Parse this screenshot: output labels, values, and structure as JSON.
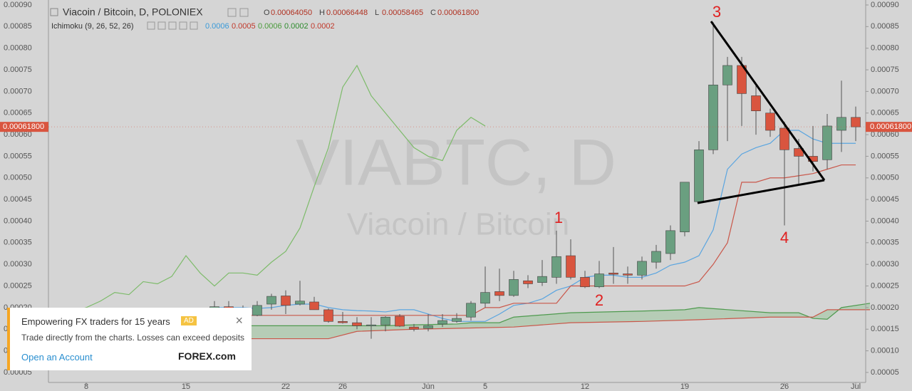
{
  "chart_data": {
    "type": "candlestick",
    "title": "Viacoin / Bitcoin, D, POLONIEX",
    "ohlc_legend": [
      "O",
      "0.00064050",
      "H",
      "0.00066448",
      "L",
      "0.00058465",
      "C",
      "0.00061800"
    ],
    "indicator": "Ichimoku (9, 26, 52, 26)",
    "indicator_values": [
      0.0006,
      0.0005,
      0.0006,
      0.0002,
      0.0002
    ],
    "indicator_colors": [
      "#3a9ad9",
      "#c0392b",
      "#4a9a3a",
      "#2e8b2e",
      "#c0392b"
    ],
    "watermark": "VIABTC, D",
    "watermark_subtitle": "Viacoin / Bitcoin",
    "last_price": {
      "value": 0.000618,
      "label": "0.00061800"
    },
    "up_color": "#6a9f80",
    "down_color": "#d9553f",
    "x": [
      16,
      17,
      18,
      19,
      20,
      21,
      22,
      23,
      24,
      25,
      26,
      27,
      28,
      29,
      30,
      31,
      32,
      33,
      34,
      35,
      36,
      37,
      38,
      39,
      40,
      41,
      42,
      43,
      44,
      45,
      46,
      47,
      48,
      49,
      50,
      51,
      52,
      53,
      54,
      55,
      56,
      57,
      58,
      59,
      60,
      61
    ],
    "open": [
      0.000195,
      0.000202,
      0.000199,
      0.000182,
      0.000208,
      0.000227,
      0.000208,
      0.000213,
      0.000195,
      0.000168,
      0.000165,
      0.000158,
      0.00016,
      0.00018,
      0.000155,
      0.000152,
      0.000162,
      0.000168,
      0.000178,
      0.00021,
      0.000237,
      0.000228,
      0.000262,
      0.000258,
      0.00027,
      0.00032,
      0.00027,
      0.000248,
      0.00028,
      0.000278,
      0.000275,
      0.000305,
      0.000325,
      0.000375,
      0.000445,
      0.000565,
      0.000715,
      0.00076,
      0.00069,
      0.00065,
      0.000615,
      0.000568,
      0.00055,
      0.000542,
      0.00061,
      0.00064
    ],
    "high": [
      0.000215,
      0.000215,
      0.000205,
      0.000215,
      0.000232,
      0.00024,
      0.000262,
      0.000225,
      0.000198,
      0.00019,
      0.000178,
      0.000178,
      0.00018,
      0.000185,
      0.000162,
      0.000185,
      0.000185,
      0.000187,
      0.000215,
      0.000295,
      0.00029,
      0.000285,
      0.000275,
      0.00031,
      0.000378,
      0.000358,
      0.000285,
      0.000308,
      0.00034,
      0.000295,
      0.000318,
      0.000345,
      0.00039,
      0.00049,
      0.000585,
      0.00086,
      0.00078,
      0.00078,
      0.000715,
      0.00066,
      0.00063,
      0.00059,
      0.00062,
      0.000648,
      0.000725,
      0.000665
    ],
    "low": [
      0.000185,
      0.00019,
      0.00019,
      0.00018,
      0.000195,
      0.000185,
      0.000205,
      0.000195,
      0.000165,
      0.000163,
      0.00015,
      0.000128,
      0.000145,
      0.000155,
      0.000145,
      0.000145,
      0.000155,
      0.000165,
      0.00017,
      0.0002,
      0.000215,
      0.000225,
      0.000245,
      0.00025,
      0.000255,
      0.000265,
      0.000245,
      0.000245,
      0.000255,
      0.000255,
      0.000265,
      0.00029,
      0.00031,
      0.000365,
      0.00044,
      0.000555,
      0.000585,
      0.00062,
      0.0006,
      0.000595,
      0.00039,
      0.000485,
      0.000515,
      0.00052,
      0.00056,
      0.000585
    ],
    "close": [
      0.000202,
      0.000199,
      0.000198,
      0.000205,
      0.000226,
      0.000205,
      0.000215,
      0.000195,
      0.000168,
      0.000165,
      0.000158,
      0.00016,
      0.000178,
      0.000157,
      0.00015,
      0.000158,
      0.00017,
      0.000175,
      0.00021,
      0.000235,
      0.000228,
      0.000265,
      0.000255,
      0.000272,
      0.000318,
      0.00027,
      0.000248,
      0.000278,
      0.000277,
      0.000275,
      0.000307,
      0.00033,
      0.000378,
      0.00049,
      0.000565,
      0.000715,
      0.00076,
      0.000695,
      0.000655,
      0.00061,
      0.000565,
      0.00055,
      0.000538,
      0.00062,
      0.00064,
      0.000618
    ],
    "series": [
      {
        "name": "Tenkan",
        "color": "#5aa5e0",
        "x": [
          16,
          17,
          18,
          19,
          20,
          21,
          22,
          23,
          24,
          25,
          26,
          27,
          28,
          29,
          30,
          31,
          32,
          33,
          34,
          35,
          36,
          37,
          38,
          39,
          40,
          41,
          42,
          43,
          44,
          45,
          46,
          47,
          48,
          49,
          50,
          51,
          52,
          53,
          54,
          55,
          56,
          57,
          58,
          59,
          60,
          61
        ],
        "values": [
          0.0002,
          0.0002,
          0.0002,
          0.000198,
          0.0002,
          0.000205,
          0.000208,
          0.000208,
          0.0002,
          0.000195,
          0.000193,
          0.000192,
          0.00019,
          0.000195,
          0.000195,
          0.000185,
          0.000175,
          0.000168,
          0.000168,
          0.000168,
          0.000185,
          0.000205,
          0.00021,
          0.00022,
          0.00024,
          0.00025,
          0.00027,
          0.000275,
          0.000275,
          0.00027,
          0.00027,
          0.00028,
          0.000298,
          0.000305,
          0.00032,
          0.00038,
          0.00052,
          0.000555,
          0.00057,
          0.00058,
          0.00061,
          0.00061,
          0.00059,
          0.00058,
          0.00058,
          0.00058
        ]
      },
      {
        "name": "Kijun",
        "color": "#c9574a",
        "x": [
          16,
          17,
          18,
          19,
          20,
          21,
          22,
          23,
          24,
          25,
          26,
          27,
          28,
          29,
          30,
          31,
          32,
          33,
          34,
          35,
          36,
          37,
          38,
          39,
          40,
          41,
          42,
          43,
          44,
          45,
          46,
          47,
          48,
          49,
          50,
          51,
          52,
          53,
          54,
          55,
          56,
          57,
          58,
          59,
          60,
          61
        ],
        "values": [
          0.000182,
          0.000182,
          0.000182,
          0.000182,
          0.000182,
          0.000182,
          0.000182,
          0.000182,
          0.000182,
          0.000182,
          0.000182,
          0.000182,
          0.000182,
          0.000182,
          0.000182,
          0.000182,
          0.000182,
          0.000182,
          0.000182,
          0.0002,
          0.0002,
          0.00021,
          0.00021,
          0.00021,
          0.00021,
          0.00025,
          0.00025,
          0.00025,
          0.00025,
          0.00025,
          0.00025,
          0.00025,
          0.00025,
          0.00025,
          0.00026,
          0.0003,
          0.00035,
          0.00049,
          0.00049,
          0.0005,
          0.0005,
          0.000505,
          0.00051,
          0.00052,
          0.00053,
          0.00053
        ]
      },
      {
        "name": "Chikou",
        "color": "#7dbb6a",
        "x": [
          6,
          7,
          8,
          9,
          10,
          11,
          12,
          13,
          14,
          15,
          16,
          17,
          18,
          19,
          20,
          21,
          22,
          23,
          24,
          25,
          26,
          27,
          28,
          29,
          30,
          31,
          32,
          33,
          34,
          35
        ],
        "values": [
          0.00019,
          0.0002,
          0.000215,
          0.000235,
          0.00023,
          0.00026,
          0.000255,
          0.000272,
          0.00032,
          0.00028,
          0.00025,
          0.00028,
          0.00028,
          0.000275,
          0.000305,
          0.00033,
          0.000384,
          0.00048,
          0.00057,
          0.00071,
          0.00076,
          0.00069,
          0.00065,
          0.00061,
          0.00057,
          0.00055,
          0.00054,
          0.00061,
          0.00064,
          0.00062
        ]
      },
      {
        "name": "Span A",
        "color": "#4e9a4e",
        "x": [
          16,
          20,
          24,
          28,
          30,
          33,
          34,
          36,
          37,
          41,
          46,
          49,
          50,
          55,
          57,
          58,
          59,
          60,
          62
        ],
        "values": [
          0.000158,
          0.000158,
          0.000158,
          0.000158,
          0.00016,
          0.000162,
          0.000165,
          0.000165,
          0.000178,
          0.000188,
          0.000192,
          0.000195,
          0.0002,
          0.000188,
          0.000188,
          0.000175,
          0.000173,
          0.0002,
          0.00021
        ]
      },
      {
        "name": "Span B",
        "color": "#c9574a",
        "x": [
          16,
          24,
          26,
          30,
          33,
          37,
          41,
          46,
          50,
          55,
          58,
          59,
          62
        ],
        "values": [
          0.000128,
          0.000128,
          0.000145,
          0.00015,
          0.000152,
          0.000155,
          0.000165,
          0.000168,
          0.000172,
          0.000178,
          0.000178,
          0.000195,
          0.000195
        ]
      }
    ],
    "xlim": [
      4.35,
      61.7
    ],
    "xticks": [
      {
        "value": 7,
        "label": "8"
      },
      {
        "value": 14,
        "label": "15"
      },
      {
        "value": 21,
        "label": "22"
      },
      {
        "value": 25,
        "label": "26"
      },
      {
        "value": 31,
        "label": "Jun"
      },
      {
        "value": 35,
        "label": "5"
      },
      {
        "value": 42,
        "label": "12"
      },
      {
        "value": 49,
        "label": "19"
      },
      {
        "value": 56,
        "label": "26"
      },
      {
        "value": 61,
        "label": "Jul"
      }
    ],
    "ylim": [
      2.68e-05,
      0.0009115
    ],
    "yticks": [
      {
        "value": 0.0009,
        "label": "0.00090"
      },
      {
        "value": 0.00085,
        "label": "0.00085"
      },
      {
        "value": 0.0008,
        "label": "0.00080"
      },
      {
        "value": 0.00075,
        "label": "0.00075"
      },
      {
        "value": 0.0007,
        "label": "0.00070"
      },
      {
        "value": 0.00065,
        "label": "0.00065"
      },
      {
        "value": 0.0006,
        "label": "0.00060"
      },
      {
        "value": 0.00055,
        "label": "0.00055"
      },
      {
        "value": 0.0005,
        "label": "0.00050"
      },
      {
        "value": 0.00045,
        "label": "0.00045"
      },
      {
        "value": 0.0004,
        "label": "0.00040"
      },
      {
        "value": 0.00035,
        "label": "0.00035"
      },
      {
        "value": 0.0003,
        "label": "0.00030"
      },
      {
        "value": 0.00025,
        "label": "0.00025"
      },
      {
        "value": 0.0002,
        "label": "0.00020"
      },
      {
        "value": 0.00015,
        "label": "0.00015"
      },
      {
        "value": 0.0001,
        "label": "0.00010"
      },
      {
        "value": 5e-05,
        "label": "0.00005"
      }
    ],
    "annotations": [
      "1",
      "2",
      "3",
      "4"
    ]
  },
  "ad": {
    "headline": "Empowering FX traders for 15 years",
    "badge": "AD",
    "text": "Trade directly from the charts. Losses can exceed deposits",
    "link": "Open an Account",
    "brand": "FOREX.com",
    "close": "×"
  }
}
